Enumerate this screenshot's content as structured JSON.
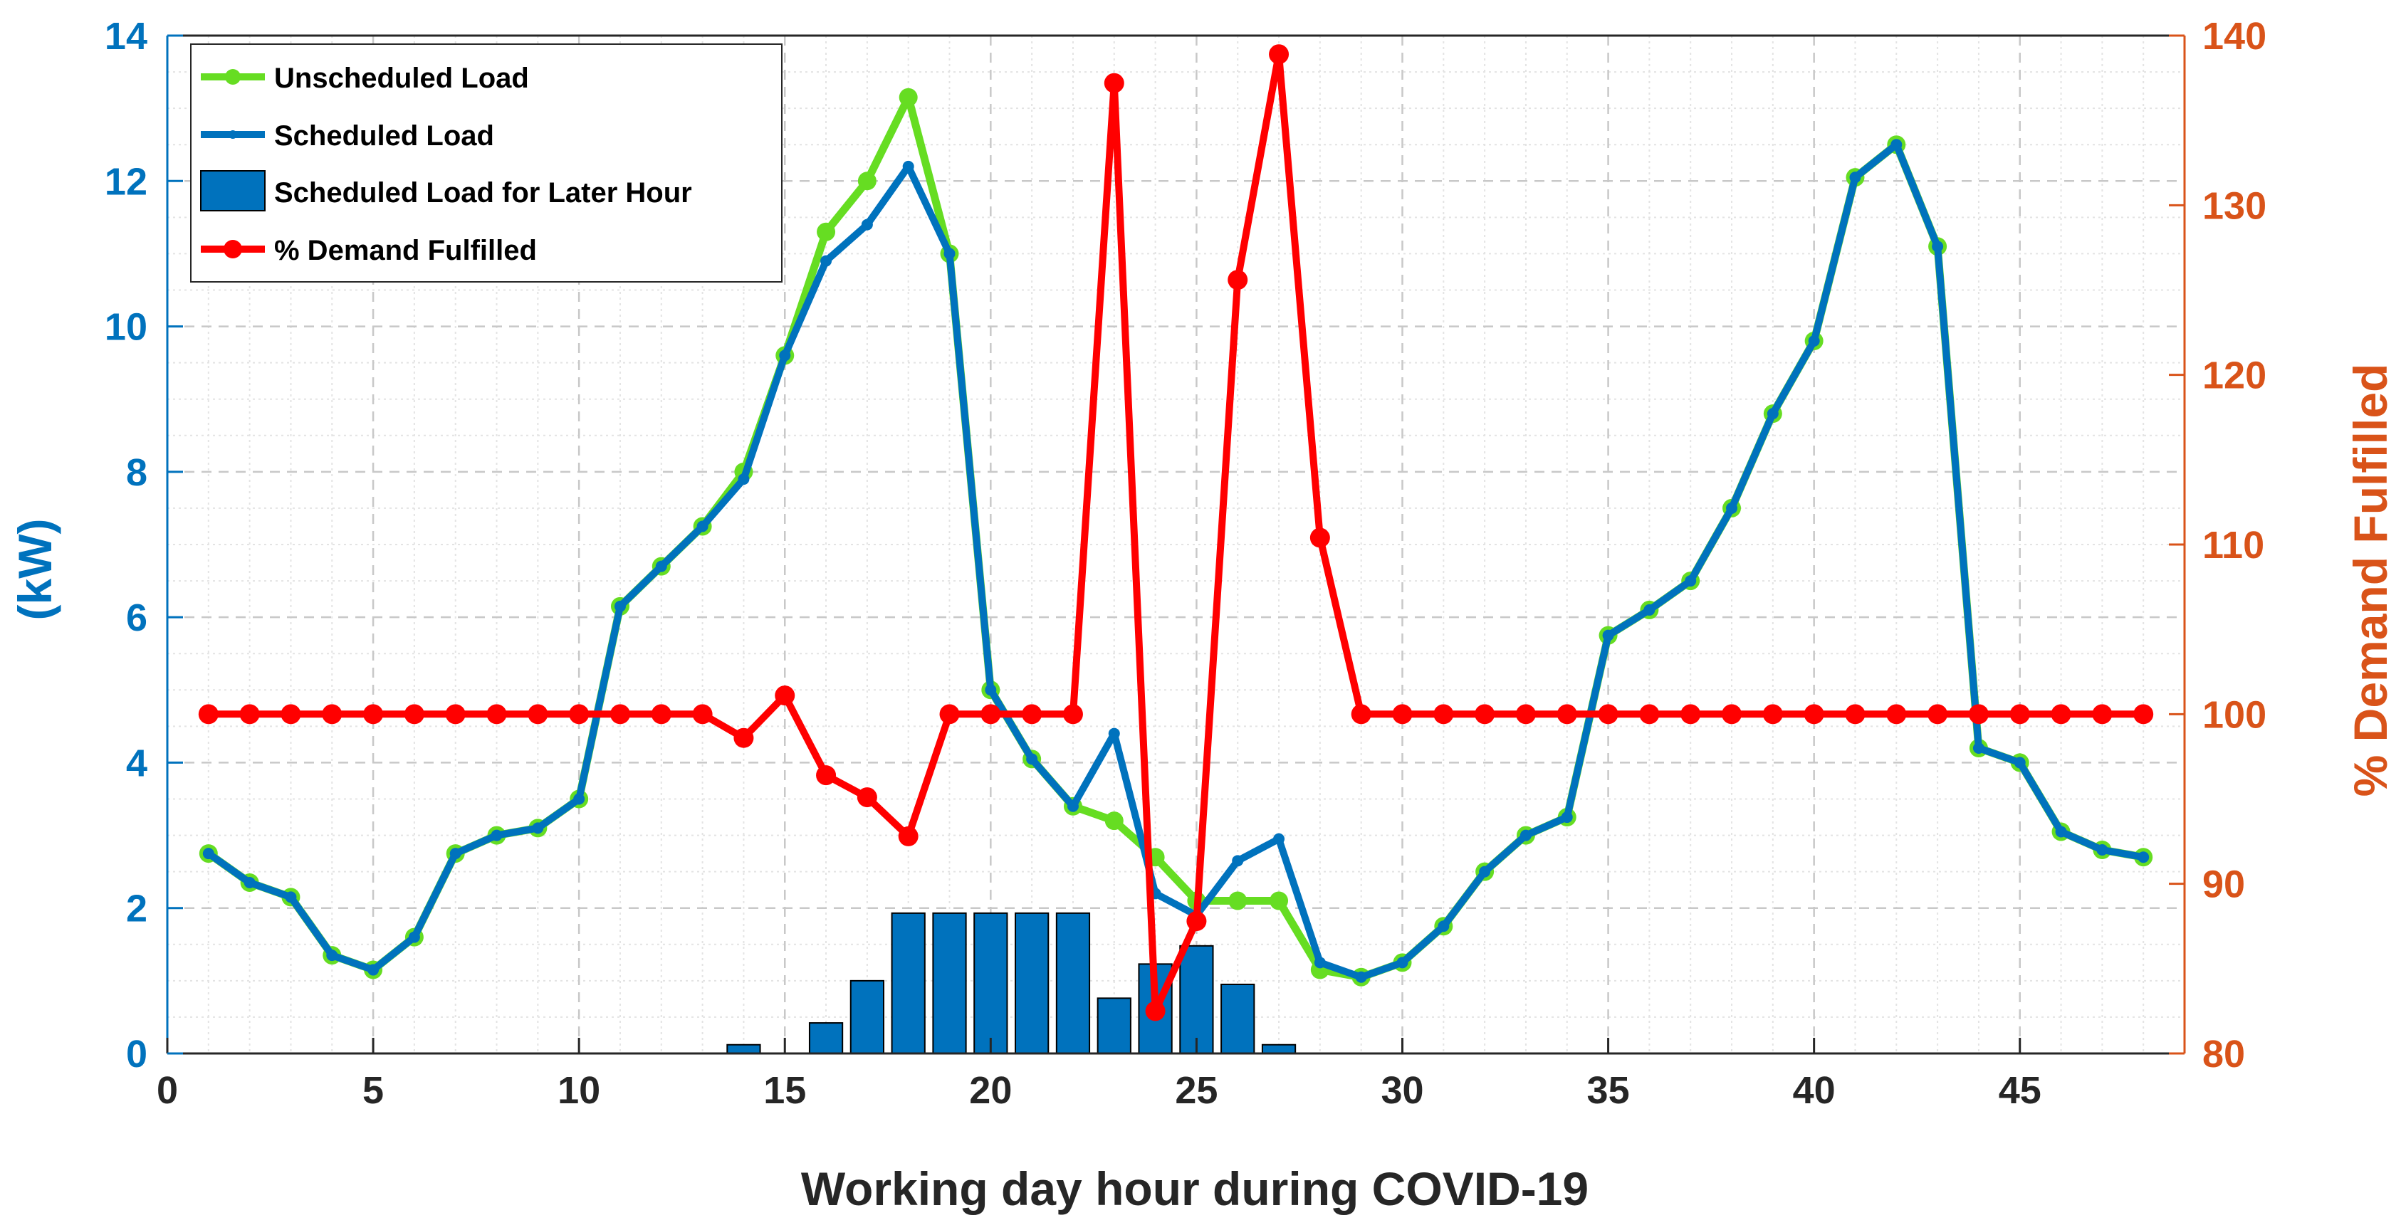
{
  "chart_data": {
    "type": "line",
    "title": "",
    "xlabel": "Working day hour during COVID-19",
    "ylabel_left": "(kW)",
    "ylabel_right": "% Demand Fulfilled",
    "xlim": [
      0,
      49
    ],
    "ylim_left": [
      0,
      14
    ],
    "ylim_right": [
      80,
      140
    ],
    "x_ticks": [
      0,
      5,
      10,
      15,
      20,
      25,
      30,
      35,
      40,
      45
    ],
    "y_ticks_left": [
      0,
      2,
      4,
      6,
      8,
      10,
      12,
      14
    ],
    "y_ticks_right": [
      80,
      90,
      100,
      110,
      120,
      130,
      140
    ],
    "grid": true,
    "minor_grid": true,
    "legend_position": "top-left",
    "x": [
      1,
      2,
      3,
      4,
      5,
      6,
      7,
      8,
      9,
      10,
      11,
      12,
      13,
      14,
      15,
      16,
      17,
      18,
      19,
      20,
      21,
      22,
      23,
      24,
      25,
      26,
      27,
      28,
      29,
      30,
      31,
      32,
      33,
      34,
      35,
      36,
      37,
      38,
      39,
      40,
      41,
      42,
      43,
      44,
      45,
      46,
      47,
      48
    ],
    "series": [
      {
        "name": "Unscheduled Load",
        "type": "line",
        "axis": "left",
        "color": "#66dd22",
        "values": [
          2.75,
          2.35,
          2.15,
          1.35,
          1.15,
          1.6,
          2.75,
          3.0,
          3.1,
          3.5,
          6.15,
          6.7,
          7.25,
          8.0,
          9.6,
          11.3,
          12.0,
          13.15,
          11.0,
          5.0,
          4.05,
          3.4,
          3.2,
          2.7,
          2.1,
          2.1,
          2.1,
          1.15,
          1.05,
          1.25,
          1.75,
          2.5,
          3.0,
          3.25,
          5.75,
          6.1,
          6.5,
          7.5,
          8.8,
          9.8,
          12.05,
          12.5,
          11.1,
          4.2,
          4.0,
          3.05,
          2.8,
          2.7
        ]
      },
      {
        "name": "Scheduled Load",
        "type": "line",
        "axis": "left",
        "color": "#0072bd",
        "values": [
          2.75,
          2.35,
          2.15,
          1.35,
          1.15,
          1.6,
          2.75,
          3.0,
          3.1,
          3.5,
          6.15,
          6.7,
          7.25,
          7.9,
          9.6,
          10.9,
          11.4,
          12.2,
          11.0,
          5.0,
          4.05,
          3.4,
          4.4,
          2.2,
          1.9,
          2.65,
          2.95,
          1.25,
          1.05,
          1.25,
          1.75,
          2.5,
          3.0,
          3.25,
          5.75,
          6.1,
          6.5,
          7.5,
          8.8,
          9.8,
          12.05,
          12.5,
          11.1,
          4.2,
          4.0,
          3.05,
          2.8,
          2.7
        ]
      },
      {
        "name": "Scheduled Load for Later Hour",
        "type": "bar",
        "axis": "left",
        "color": "#0072bd",
        "values": [
          0,
          0,
          0,
          0,
          0,
          0,
          0,
          0,
          0,
          0,
          0,
          0,
          0,
          0.12,
          0,
          0.42,
          1.0,
          1.93,
          1.93,
          1.93,
          1.93,
          1.93,
          0.76,
          1.23,
          1.48,
          0.95,
          0.12,
          0,
          0,
          0,
          0,
          0,
          0,
          0,
          0,
          0,
          0,
          0,
          0,
          0,
          0,
          0,
          0,
          0,
          0,
          0,
          0,
          0
        ]
      },
      {
        "name": "% Demand Fulfilled",
        "type": "line",
        "axis": "right",
        "color": "#ff0000",
        "values": [
          100,
          100,
          100,
          100,
          100,
          100,
          100,
          100,
          100,
          100,
          100,
          100,
          100,
          98.6,
          101.1,
          96.4,
          95.1,
          92.8,
          100,
          100,
          100,
          100,
          137.2,
          82.5,
          87.8,
          125.6,
          138.9,
          110.4,
          100,
          100,
          100,
          100,
          100,
          100,
          100,
          100,
          100,
          100,
          100,
          100,
          100,
          100,
          100,
          100,
          100,
          100,
          100,
          100
        ]
      }
    ],
    "legend": [
      "Unscheduled Load",
      "Scheduled Load",
      "Scheduled Load for Later Hour",
      "% Demand Fulfilled"
    ]
  }
}
